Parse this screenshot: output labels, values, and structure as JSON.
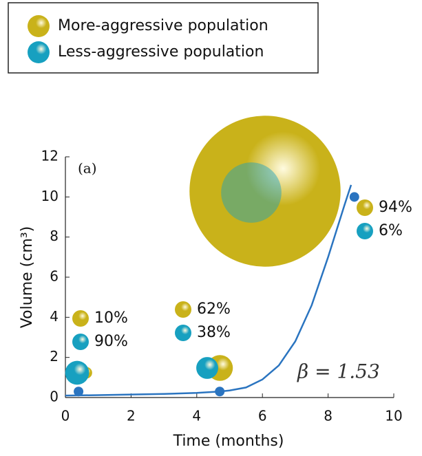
{
  "chart_data": {
    "type": "line",
    "xlabel": "Time (months)",
    "ylabel": "Volume (cm³)",
    "annotations": [
      "(a)",
      "β = 1.53"
    ],
    "xlim": [
      0,
      10
    ],
    "xticks": [
      0,
      2,
      4,
      6,
      8,
      10
    ],
    "ylim": [
      0,
      12
    ],
    "yticks": [
      0,
      2,
      4,
      6,
      8,
      10,
      12
    ],
    "curve": {
      "color": "#2a74c0",
      "x": [
        0,
        1,
        2,
        3,
        4,
        4.7,
        5,
        5.5,
        6,
        6.5,
        7,
        7.5,
        8,
        8.5,
        8.7
      ],
      "values": [
        0.1,
        0.12,
        0.15,
        0.18,
        0.23,
        0.3,
        0.35,
        0.5,
        0.9,
        1.6,
        2.8,
        4.6,
        7.0,
        9.6,
        10.6
      ]
    },
    "points": {
      "color": "#2a74c0",
      "x": [
        0.4,
        4.7,
        8.8
      ],
      "values": [
        0.3,
        0.3,
        10
      ]
    },
    "series": [
      {
        "name": "More-aggressive population",
        "color": "#c9b21a",
        "values": [
          10,
          62,
          94
        ],
        "value_labels": [
          "10%",
          "62%",
          "94%"
        ]
      },
      {
        "name": "Less-aggressive population",
        "color": "#17a0c0",
        "values": [
          90,
          38,
          6
        ],
        "value_labels": [
          "90%",
          "38%",
          "6%"
        ]
      }
    ]
  }
}
